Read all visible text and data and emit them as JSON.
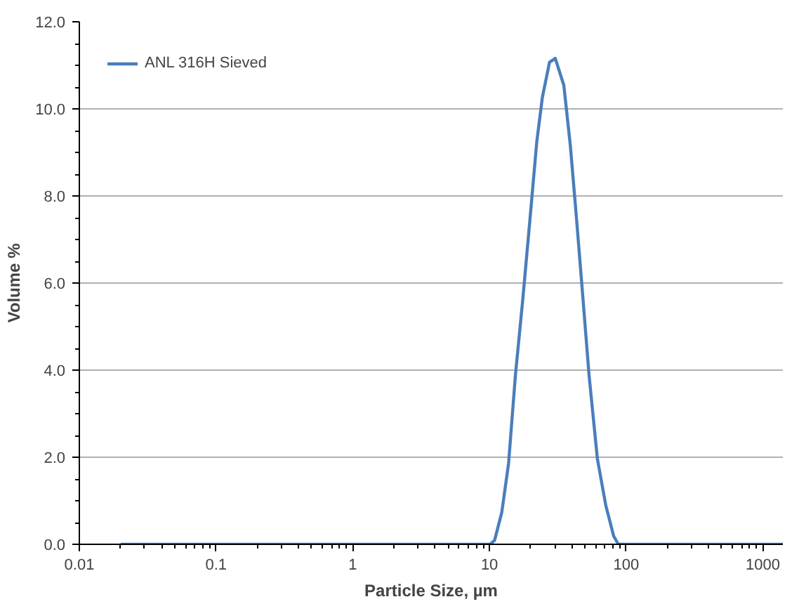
{
  "chart_data": {
    "type": "line",
    "xlabel": "Particle Size, µm",
    "ylabel": "Volume %",
    "log": "x",
    "xlim": [
      0.01,
      1400
    ],
    "xticks": [
      0.01,
      0.1,
      1,
      10,
      100,
      1000
    ],
    "ylim": [
      0,
      12
    ],
    "yticks": [
      {
        "value": 0,
        "label": "0.0"
      },
      {
        "value": 2,
        "label": "2.0"
      },
      {
        "value": 4,
        "label": "4.0"
      },
      {
        "value": 6,
        "label": "6.0"
      },
      {
        "value": 8,
        "label": "8.0"
      },
      {
        "value": 10,
        "label": "10.0"
      },
      {
        "value": 12,
        "label": "12.0"
      }
    ],
    "grid": "y",
    "legend": "top left",
    "marker": "none",
    "line_style": "solid",
    "series": [
      {
        "name": "ANL 316H Sieved",
        "color": "#4a7ebb",
        "x": [
          0.02,
          10.1,
          10.9,
          12.3,
          13.8,
          15.5,
          17.5,
          19.7,
          22.2,
          24.4,
          27.5,
          30.3,
          35,
          39.1,
          43.2,
          47.8,
          53.5,
          61.6,
          71,
          81,
          87.7,
          1400
        ],
        "values": [
          0,
          0,
          0.09,
          0.73,
          1.86,
          3.9,
          5.6,
          7.4,
          9.25,
          10.27,
          11.07,
          11.16,
          10.54,
          9.14,
          7.53,
          5.82,
          3.89,
          1.96,
          0.89,
          0.19,
          0,
          0
        ]
      }
    ]
  }
}
